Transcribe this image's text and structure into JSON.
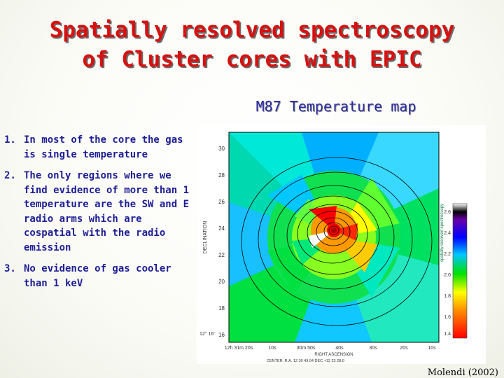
{
  "slide": {
    "title_line1": "Spatially resolved spectroscopy",
    "title_line2": "of Cluster cores with EPIC",
    "subtitle": "M87 Temperature map",
    "bullets": [
      {
        "num": "1.",
        "text": "In most of the core the gas is single temperature"
      },
      {
        "num": "2.",
        "text": "The only regions where we find evidence of more than 1 temperature are the SW and E radio arms which are cospatial with the radio emission"
      },
      {
        "num": "3.",
        "text": "No evidence of gas cooler than 1 keV"
      }
    ]
  },
  "figure": {
    "ylabel": "DECLINATION",
    "xlabel": "RIGHT ASCENSION",
    "yticks": [
      "30",
      "28",
      "26",
      "24",
      "22",
      "20",
      "18",
      "16"
    ],
    "xticks": [
      "12h 31m 20s",
      "10s",
      "30m 50s",
      "40s",
      "30s",
      "20s",
      "10s"
    ],
    "dec_prefix": "12° 16'",
    "center_label": "CENTER:  R.A. 12 30 49.04    DEC +12 23 28.0",
    "colorbar_ticks": [
      "2.6",
      "2.4",
      "2.2",
      "2.0",
      "1.8",
      "1.6",
      "1.4"
    ],
    "side_text": "spatially resolved spectroscopy",
    "credit": "Molendi (2002)"
  }
}
